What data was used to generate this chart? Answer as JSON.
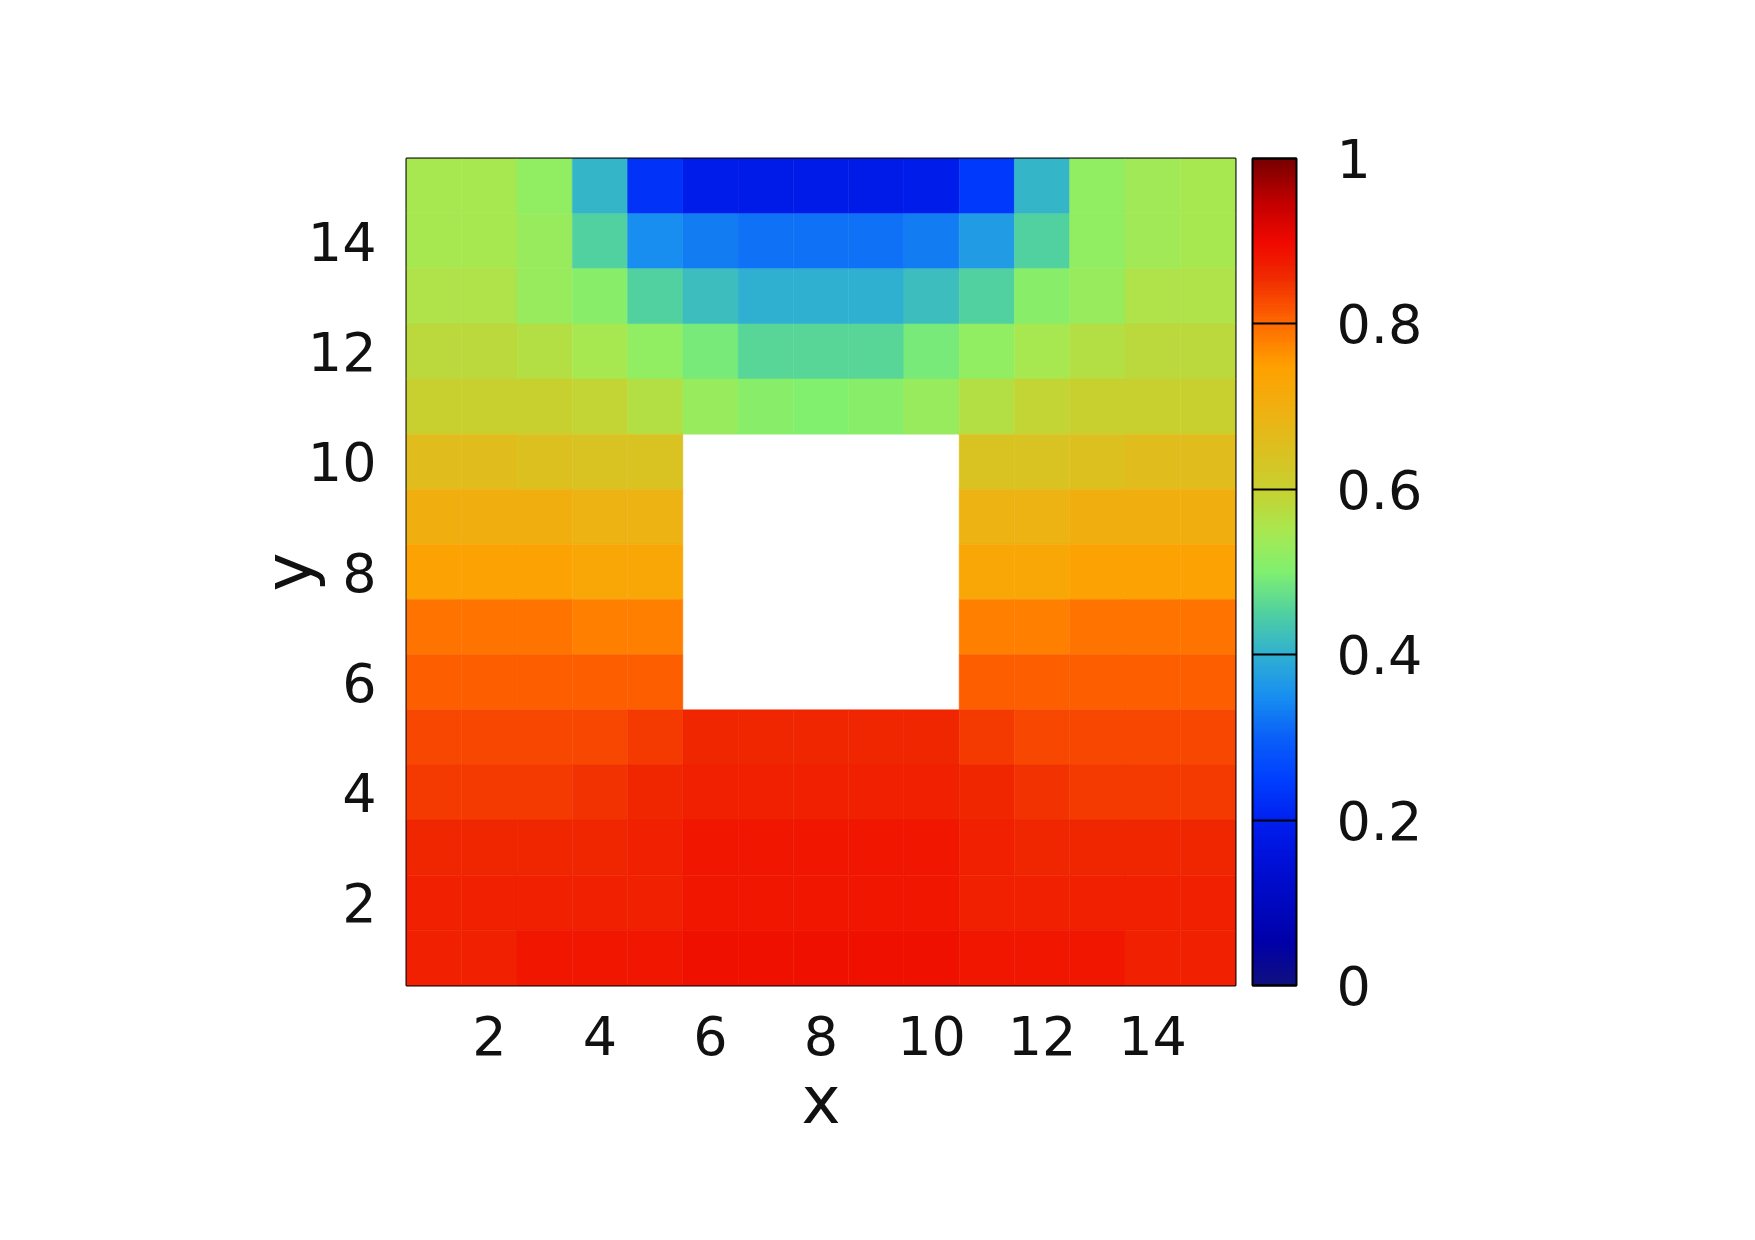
{
  "chart_data": {
    "type": "heatmap",
    "xlabel": "x",
    "ylabel": "y",
    "categories": [
      null,
      "2",
      null,
      "4",
      null,
      "6",
      null,
      "8",
      null,
      "10",
      null,
      "12",
      null,
      "14",
      null
    ],
    "y_categories": [
      null,
      "14",
      null,
      "12",
      null,
      "10",
      null,
      "8",
      null,
      "6",
      null,
      "4",
      null,
      "2",
      null
    ],
    "cells": [
      [
        0.55,
        0.55,
        0.52,
        0.41,
        0.23,
        0.19,
        0.18,
        0.18,
        0.18,
        0.19,
        0.24,
        0.41,
        0.52,
        0.54,
        0.55
      ],
      [
        0.55,
        0.55,
        0.53,
        0.45,
        0.35,
        0.33,
        0.32,
        0.32,
        0.32,
        0.33,
        0.37,
        0.45,
        0.52,
        0.54,
        0.55
      ],
      [
        0.56,
        0.56,
        0.53,
        0.51,
        0.45,
        0.42,
        0.4,
        0.4,
        0.4,
        0.42,
        0.45,
        0.51,
        0.53,
        0.56,
        0.56
      ],
      [
        0.58,
        0.58,
        0.57,
        0.55,
        0.52,
        0.49,
        0.46,
        0.46,
        0.46,
        0.49,
        0.52,
        0.55,
        0.57,
        0.58,
        0.58
      ],
      [
        0.6,
        0.6,
        0.6,
        0.59,
        0.57,
        0.53,
        0.51,
        0.5,
        0.51,
        0.53,
        0.57,
        0.59,
        0.6,
        0.6,
        0.6
      ],
      [
        0.66,
        0.66,
        0.65,
        0.64,
        0.64,
        null,
        null,
        null,
        null,
        null,
        0.64,
        0.64,
        0.65,
        0.66,
        0.66
      ],
      [
        0.7,
        0.7,
        0.7,
        0.69,
        0.69,
        null,
        null,
        null,
        null,
        null,
        0.69,
        0.69,
        0.7,
        0.7,
        0.7
      ],
      [
        0.74,
        0.74,
        0.74,
        0.73,
        0.73,
        null,
        null,
        null,
        null,
        null,
        0.73,
        0.73,
        0.74,
        0.74,
        0.74
      ],
      [
        0.79,
        0.79,
        0.79,
        0.78,
        0.78,
        null,
        null,
        null,
        null,
        null,
        0.78,
        0.78,
        0.79,
        0.79,
        0.79
      ],
      [
        0.81,
        0.81,
        0.81,
        0.81,
        0.81,
        null,
        null,
        null,
        null,
        null,
        0.81,
        0.81,
        0.81,
        0.81,
        0.81
      ],
      [
        0.83,
        0.83,
        0.83,
        0.83,
        0.84,
        0.86,
        0.86,
        0.86,
        0.86,
        0.86,
        0.84,
        0.83,
        0.83,
        0.83,
        0.83
      ],
      [
        0.84,
        0.84,
        0.84,
        0.85,
        0.86,
        0.87,
        0.87,
        0.87,
        0.87,
        0.87,
        0.86,
        0.85,
        0.84,
        0.84,
        0.84
      ],
      [
        0.86,
        0.86,
        0.86,
        0.86,
        0.87,
        0.88,
        0.88,
        0.88,
        0.88,
        0.88,
        0.87,
        0.86,
        0.86,
        0.86,
        0.86
      ],
      [
        0.87,
        0.87,
        0.87,
        0.87,
        0.87,
        0.88,
        0.88,
        0.88,
        0.88,
        0.88,
        0.87,
        0.87,
        0.87,
        0.87,
        0.87
      ],
      [
        0.87,
        0.87,
        0.88,
        0.88,
        0.88,
        0.89,
        0.89,
        0.89,
        0.89,
        0.89,
        0.88,
        0.88,
        0.88,
        0.87,
        0.87
      ]
    ],
    "clim": [
      0,
      1
    ],
    "cticks": [
      0,
      0.2,
      0.4,
      0.6,
      0.8,
      1
    ]
  }
}
